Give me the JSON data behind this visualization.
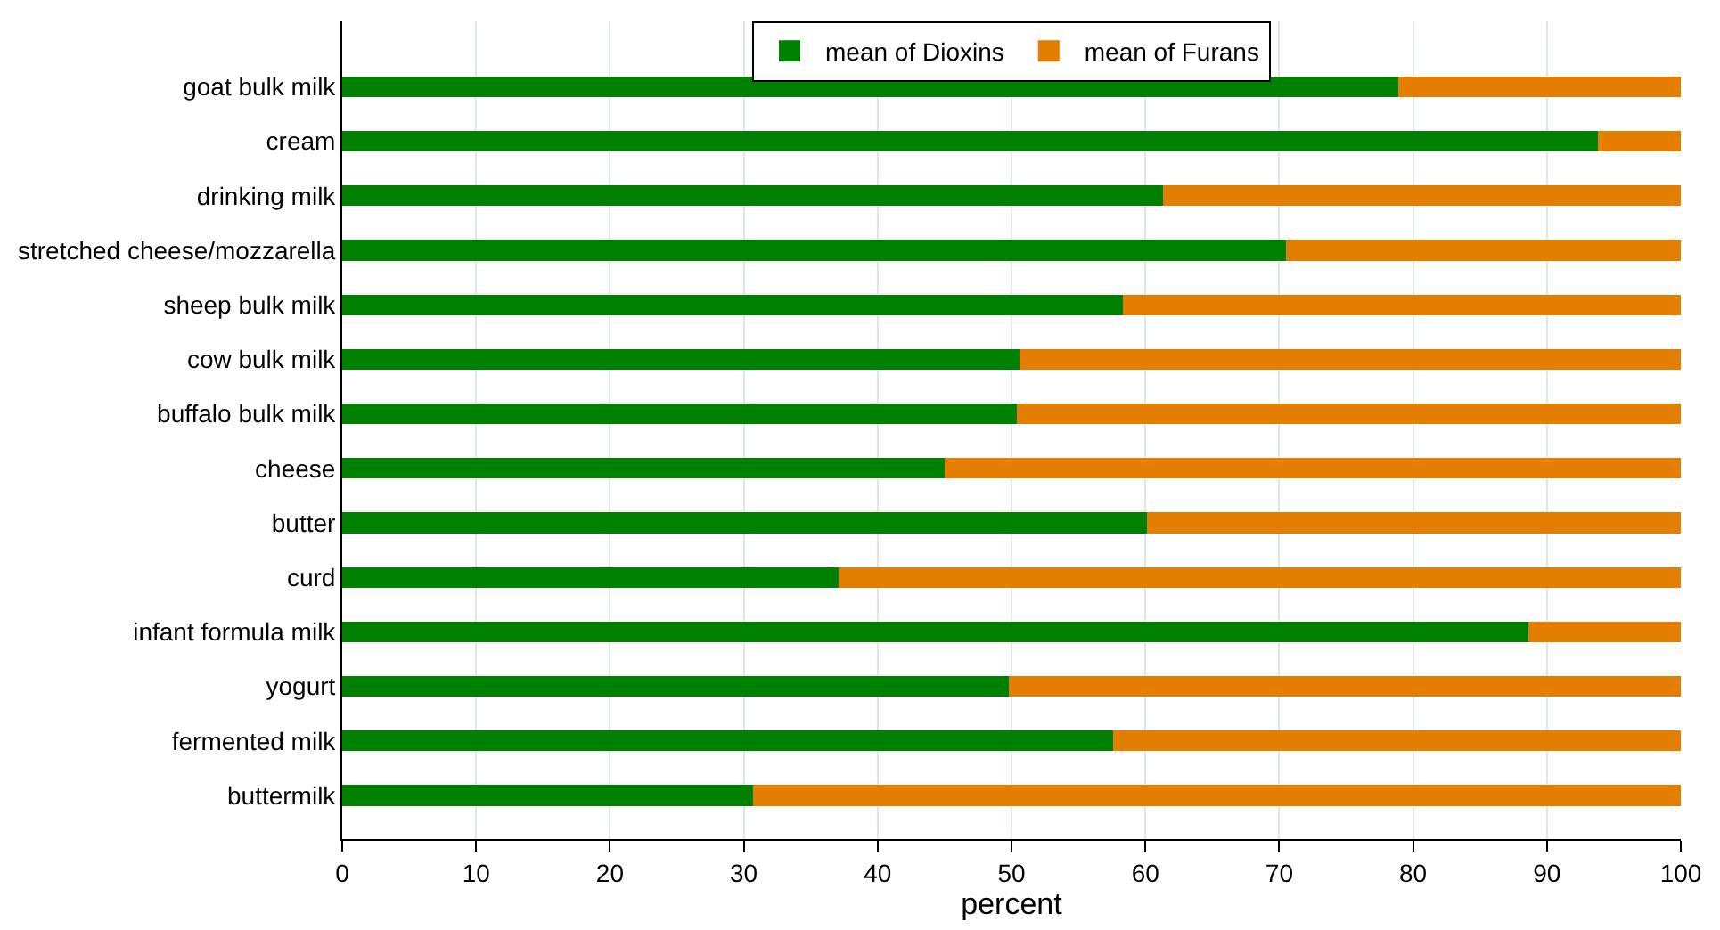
{
  "chart_data": {
    "type": "bar",
    "orientation": "horizontal",
    "stacked": true,
    "xlabel": "percent",
    "categories": [
      "goat bulk milk",
      "cream",
      "drinking milk",
      "stretched cheese/mozzarella",
      "sheep bulk milk",
      "cow bulk milk",
      "buffalo bulk milk",
      "cheese",
      "butter",
      "curd",
      "infant formula milk",
      "yogurt",
      "fermented milk",
      "buttermilk"
    ],
    "series": [
      {
        "name": "mean of Dioxins",
        "color": "#008000",
        "values": [
          78.9,
          93.8,
          61.3,
          70.5,
          58.3,
          50.6,
          50.4,
          45.0,
          60.1,
          37.1,
          88.6,
          49.8,
          57.6,
          30.7
        ]
      },
      {
        "name": "mean of Furans",
        "color": "#e37e00",
        "values": [
          21.1,
          6.2,
          38.7,
          29.5,
          41.7,
          49.4,
          49.6,
          55.0,
          39.9,
          62.9,
          11.4,
          50.2,
          42.4,
          69.3
        ]
      }
    ],
    "xlim": [
      0,
      100
    ],
    "xticks": [
      0,
      10,
      20,
      30,
      40,
      50,
      60,
      70,
      80,
      90,
      100
    ],
    "grid": "x",
    "legend": "top"
  }
}
